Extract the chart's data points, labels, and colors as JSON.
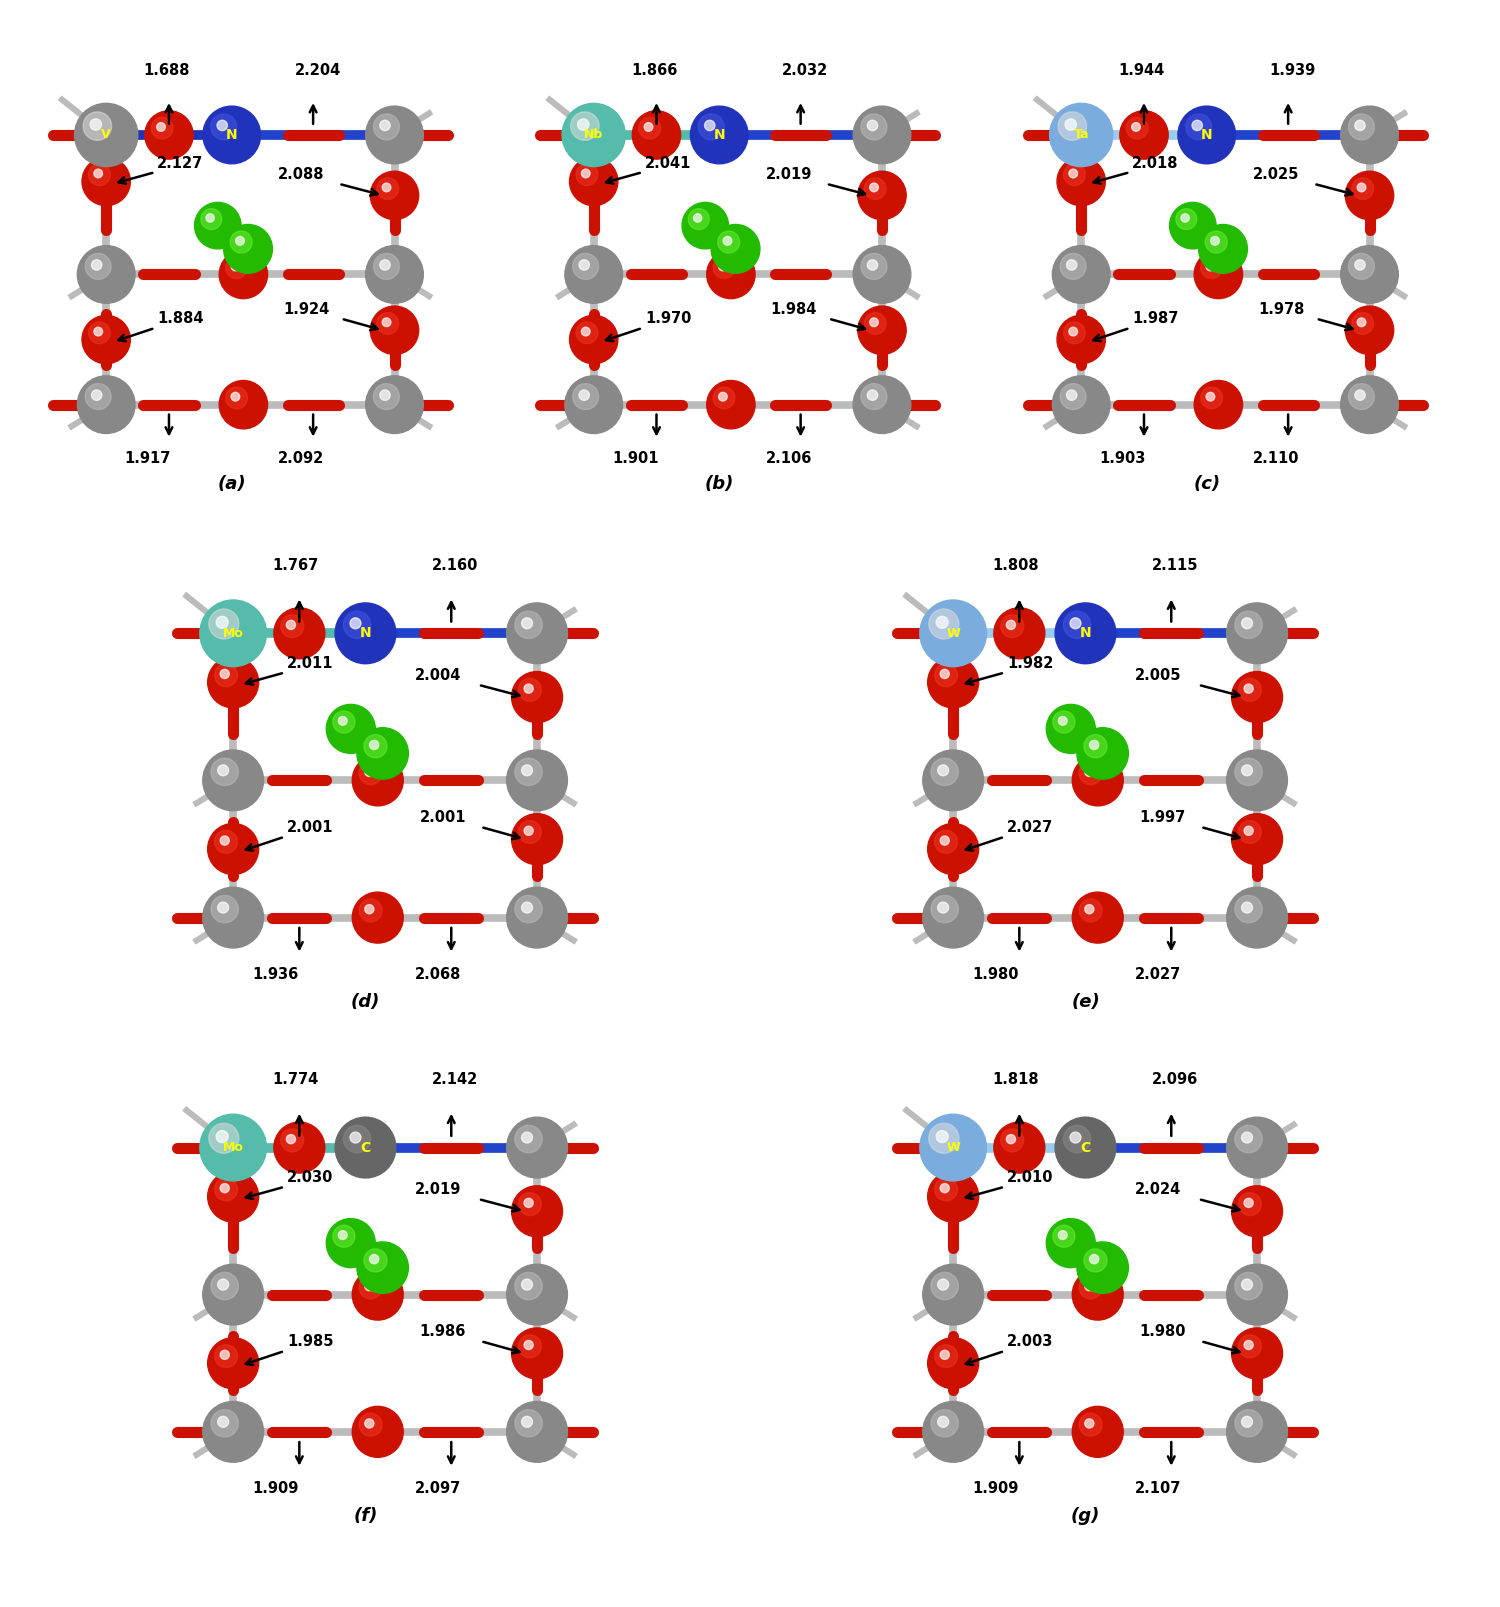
{
  "panels": [
    {
      "label": "a",
      "cation": "V",
      "cation_color": "#888888",
      "anion": "N",
      "anion_color": "#2233BB",
      "cation_bond_color": "#2233BB",
      "anion_color_light": "#4455DD",
      "top_left_val": "1.688",
      "top_right_val": "2.204",
      "mid_left_val": "2.127",
      "mid_right_val": "2.088",
      "bot_left_val": "1.884",
      "bot_right2_val": "1.924",
      "bot_val1": "1.917",
      "bot_val2": "2.092"
    },
    {
      "label": "b",
      "cation": "Nb",
      "cation_color": "#55BBAA",
      "anion": "N",
      "anion_color": "#2233BB",
      "cation_bond_color": "#55BBAA",
      "anion_color_light": "#4455DD",
      "top_left_val": "1.866",
      "top_right_val": "2.032",
      "mid_left_val": "2.041",
      "mid_right_val": "2.019",
      "bot_left_val": "1.970",
      "bot_right2_val": "1.984",
      "bot_val1": "1.901",
      "bot_val2": "2.106"
    },
    {
      "label": "c",
      "cation": "Ta",
      "cation_color": "#7AADDD",
      "anion": "N",
      "anion_color": "#2233BB",
      "cation_bond_color": "#99CCEE",
      "anion_color_light": "#4455DD",
      "top_left_val": "1.944",
      "top_right_val": "1.939",
      "mid_left_val": "2.018",
      "mid_right_val": "2.025",
      "bot_left_val": "1.987",
      "bot_right2_val": "1.978",
      "bot_val1": "1.903",
      "bot_val2": "2.110"
    },
    {
      "label": "d",
      "cation": "Mo",
      "cation_color": "#55BBAA",
      "anion": "N",
      "anion_color": "#2233BB",
      "cation_bond_color": "#55BBAA",
      "anion_color_light": "#4455DD",
      "top_left_val": "1.767",
      "top_right_val": "2.160",
      "mid_left_val": "2.011",
      "mid_right_val": "2.004",
      "bot_left_val": "2.001",
      "bot_right2_val": "2.001",
      "bot_val1": "1.936",
      "bot_val2": "2.068"
    },
    {
      "label": "e",
      "cation": "W",
      "cation_color": "#7AADDD",
      "anion": "N",
      "anion_color": "#2233BB",
      "cation_bond_color": "#99CCEE",
      "anion_color_light": "#4455DD",
      "top_left_val": "1.808",
      "top_right_val": "2.115",
      "mid_left_val": "1.982",
      "mid_right_val": "2.005",
      "bot_left_val": "2.027",
      "bot_right2_val": "1.997",
      "bot_val1": "1.980",
      "bot_val2": "2.027"
    },
    {
      "label": "f",
      "cation": "Mo",
      "cation_color": "#55BBAA",
      "anion": "C",
      "anion_color": "#666666",
      "cation_bond_color": "#55BBAA",
      "anion_color_light": "#888888",
      "top_left_val": "1.774",
      "top_right_val": "2.142",
      "mid_left_val": "2.030",
      "mid_right_val": "2.019",
      "bot_left_val": "1.985",
      "bot_right2_val": "1.986",
      "bot_val1": "1.909",
      "bot_val2": "2.097"
    },
    {
      "label": "g",
      "cation": "W",
      "cation_color": "#7AADDD",
      "anion": "C",
      "anion_color": "#666666",
      "cation_bond_color": "#99CCEE",
      "anion_color_light": "#888888",
      "top_left_val": "1.818",
      "top_right_val": "2.096",
      "mid_left_val": "2.010",
      "mid_right_val": "2.024",
      "bot_left_val": "2.003",
      "bot_right2_val": "1.980",
      "bot_val1": "1.909",
      "bot_val2": "2.107"
    }
  ],
  "bg_color": "#FFFFFF",
  "atom_red": "#CC1100",
  "atom_red_light": "#EE3322",
  "atom_gray": "#888888",
  "atom_gray_light": "#BBBBBB",
  "atom_gray_dark": "#666666",
  "atom_green": "#22BB00",
  "atom_green_light": "#66EE33",
  "bond_gray": "#BBBBBB",
  "bond_red": "#CC1100"
}
